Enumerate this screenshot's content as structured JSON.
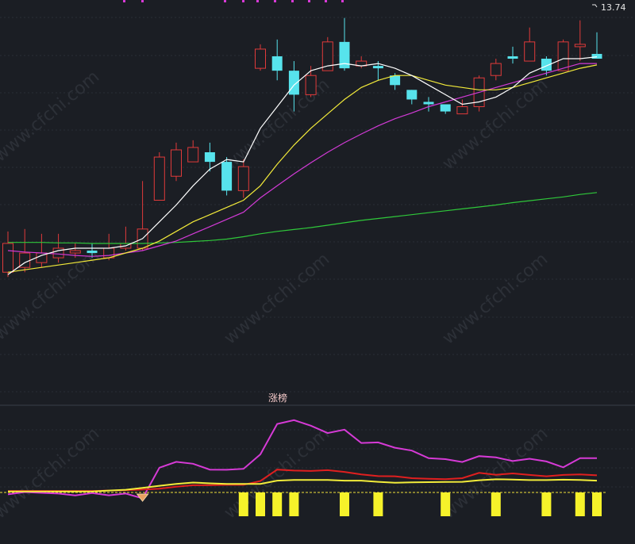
{
  "chart_data": [
    {
      "type": "candlestick",
      "title": "",
      "annotation_price": "13.74",
      "colors": {
        "up": "#e03a3a",
        "down": "#57e3ec",
        "ma5": "#ffffff",
        "ma10": "#f2ea3a",
        "ma20": "#d23ad6",
        "ma60": "#2fc83a"
      },
      "candles": [
        {
          "o": 14.5,
          "c": 15.1,
          "h": 15.35,
          "l": 14.4
        },
        {
          "o": 14.6,
          "c": 14.9,
          "h": 15.4,
          "l": 14.5
        },
        {
          "o": 14.7,
          "c": 14.9,
          "h": 15.3,
          "l": 14.6
        },
        {
          "o": 14.8,
          "c": 15.0,
          "h": 15.3,
          "l": 14.7
        },
        {
          "o": 14.9,
          "c": 14.95,
          "h": 15.1,
          "l": 14.8
        },
        {
          "o": 14.95,
          "c": 14.9,
          "h": 15.1,
          "l": 14.8
        },
        {
          "o": 14.8,
          "c": 15.0,
          "h": 15.3,
          "l": 14.75
        },
        {
          "o": 15.0,
          "c": 15.1,
          "h": 15.45,
          "l": 14.95
        },
        {
          "o": 15.0,
          "c": 15.4,
          "h": 16.4,
          "l": 14.95
        },
        {
          "o": 16.0,
          "c": 16.9,
          "h": 17.0,
          "l": 16.0
        },
        {
          "o": 16.5,
          "c": 17.05,
          "h": 17.2,
          "l": 16.4
        },
        {
          "o": 16.8,
          "c": 17.1,
          "h": 17.25,
          "l": 16.8
        },
        {
          "o": 17.0,
          "c": 16.8,
          "h": 17.2,
          "l": 16.6
        },
        {
          "o": 16.8,
          "c": 16.2,
          "h": 16.9,
          "l": 16.1
        },
        {
          "o": 16.2,
          "c": 16.7,
          "h": 16.85,
          "l": 16.05
        },
        {
          "o": 18.75,
          "c": 19.15,
          "h": 19.25,
          "l": 18.7
        },
        {
          "o": 19.0,
          "c": 18.7,
          "h": 19.35,
          "l": 18.5
        },
        {
          "o": 18.7,
          "c": 18.2,
          "h": 18.9,
          "l": 17.85
        },
        {
          "o": 18.2,
          "c": 18.6,
          "h": 18.8,
          "l": 18.15
        },
        {
          "o": 18.7,
          "c": 19.3,
          "h": 19.4,
          "l": 18.7
        },
        {
          "o": 19.3,
          "c": 18.75,
          "h": 19.8,
          "l": 18.7
        },
        {
          "o": 18.8,
          "c": 18.9,
          "h": 19.0,
          "l": 18.75
        },
        {
          "o": 18.8,
          "c": 18.75,
          "h": 18.9,
          "l": 18.5
        },
        {
          "o": 18.6,
          "c": 18.4,
          "h": 18.65,
          "l": 18.3
        },
        {
          "o": 18.3,
          "c": 18.1,
          "h": 18.3,
          "l": 18.0
        },
        {
          "o": 18.05,
          "c": 18.0,
          "h": 18.15,
          "l": 17.85
        },
        {
          "o": 18.0,
          "c": 17.85,
          "h": 18.0,
          "l": 17.8
        },
        {
          "o": 17.8,
          "c": 17.95,
          "h": 18.1,
          "l": 17.8
        },
        {
          "o": 17.95,
          "c": 18.55,
          "h": 18.6,
          "l": 17.85
        },
        {
          "o": 18.6,
          "c": 18.85,
          "h": 18.95,
          "l": 18.5
        },
        {
          "o": 19.0,
          "c": 18.95,
          "h": 19.2,
          "l": 18.85
        },
        {
          "o": 18.9,
          "c": 19.3,
          "h": 19.6,
          "l": 18.9
        },
        {
          "o": 18.95,
          "c": 18.7,
          "h": 19.0,
          "l": 18.6
        },
        {
          "o": 18.7,
          "c": 19.3,
          "h": 19.35,
          "l": 18.7
        },
        {
          "o": 19.2,
          "c": 19.25,
          "h": 19.75,
          "l": 18.9
        },
        {
          "o": 19.05,
          "c": 18.95,
          "h": 19.5,
          "l": 18.95
        }
      ],
      "ma5": [
        14.45,
        14.7,
        14.85,
        14.95,
        15.0,
        15.0,
        15.0,
        15.05,
        15.2,
        15.55,
        15.9,
        16.3,
        16.65,
        16.85,
        16.8,
        17.5,
        17.95,
        18.4,
        18.7,
        18.8,
        18.85,
        18.8,
        18.85,
        18.75,
        18.6,
        18.4,
        18.2,
        18.0,
        18.05,
        18.15,
        18.35,
        18.65,
        18.8,
        18.95,
        18.95,
        18.99
      ],
      "ma10": [
        14.5,
        14.55,
        14.6,
        14.65,
        14.7,
        14.75,
        14.8,
        14.9,
        15.0,
        15.15,
        15.35,
        15.55,
        15.7,
        15.85,
        16.0,
        16.3,
        16.75,
        17.15,
        17.5,
        17.8,
        18.1,
        18.35,
        18.5,
        18.6,
        18.6,
        18.5,
        18.4,
        18.35,
        18.3,
        18.3,
        18.35,
        18.45,
        18.55,
        18.65,
        18.75,
        18.82
      ],
      "ma20": [
        14.95,
        14.92,
        14.9,
        14.88,
        14.85,
        14.83,
        14.85,
        14.9,
        14.95,
        15.05,
        15.15,
        15.3,
        15.45,
        15.6,
        15.75,
        16.05,
        16.3,
        16.55,
        16.78,
        17.0,
        17.2,
        17.38,
        17.55,
        17.7,
        17.82,
        17.95,
        18.05,
        18.15,
        18.25,
        18.35,
        18.45,
        18.55,
        18.65,
        18.75,
        18.85,
        18.85
      ],
      "ma60": [
        15.12,
        15.12,
        15.12,
        15.11,
        15.11,
        15.1,
        15.1,
        15.1,
        15.1,
        15.11,
        15.12,
        15.14,
        15.16,
        15.19,
        15.24,
        15.3,
        15.35,
        15.39,
        15.43,
        15.48,
        15.53,
        15.58,
        15.62,
        15.66,
        15.7,
        15.74,
        15.78,
        15.82,
        15.86,
        15.9,
        15.95,
        15.99,
        16.03,
        16.07,
        16.12,
        16.16
      ]
    },
    {
      "type": "indicator",
      "label": "涨榜",
      "colors": {
        "magenta": "#d63ad6",
        "red": "#e01f1f",
        "yellow": "#f2ec3a",
        "bars": "#f6f22a",
        "ref": "#f0e13a"
      },
      "magenta": [
        -1.0,
        0.2,
        -0.2,
        -0.6,
        -1.6,
        -0.3,
        -1.5,
        -0.6,
        -3.1,
        13.0,
        16.1,
        15.1,
        12.0,
        11.9,
        12.4,
        20.0,
        36.0,
        38.0,
        35.1,
        31.2,
        33.0,
        26.0,
        26.3,
        23.5,
        22.0,
        18.0,
        17.5,
        16.0,
        19.1,
        18.4,
        16.5,
        17.7,
        16.3,
        13.2,
        18.0,
        18.0
      ],
      "red": [
        0.8,
        0.8,
        0.8,
        0.8,
        0.8,
        0.8,
        1.0,
        1.2,
        1.5,
        2.0,
        3.0,
        3.8,
        3.8,
        4.0,
        4.0,
        6.0,
        12.0,
        11.5,
        11.3,
        11.7,
        10.8,
        9.5,
        8.6,
        8.5,
        7.5,
        7.2,
        7.0,
        7.5,
        10.3,
        9.3,
        10.0,
        9.2,
        8.5,
        9.2,
        9.5,
        9.0
      ],
      "yellow": [
        0.5,
        0.5,
        0.5,
        0.5,
        0.5,
        0.5,
        1.0,
        1.4,
        2.4,
        3.5,
        4.5,
        5.2,
        4.8,
        4.5,
        4.5,
        4.5,
        6.2,
        6.6,
        6.6,
        6.6,
        6.2,
        6.2,
        5.6,
        5.1,
        5.3,
        5.4,
        5.5,
        5.6,
        6.4,
        6.9,
        6.8,
        6.5,
        6.5,
        6.7,
        6.6,
        6.2
      ],
      "bar_indices": [
        14,
        15,
        16,
        17,
        20,
        22,
        26,
        29,
        32,
        34,
        35
      ],
      "signal_index": 8,
      "ref_value": 0
    }
  ]
}
